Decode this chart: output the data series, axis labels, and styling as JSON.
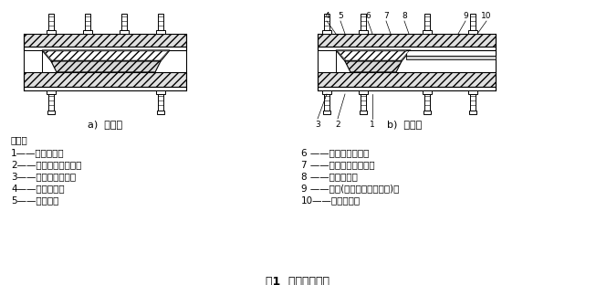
{
  "title": "图1  多向活动支座",
  "subtitle_a": "a)  纵桥向",
  "subtitle_b": "b)  横桥向",
  "legend_title": "说明：",
  "legend_left": [
    "1——下支座板；",
    "2——球面非金属滑板；",
    "3——球面不锈钢板；",
    "4——上支座板；",
    "5——密封环；"
  ],
  "legend_right": [
    "6 ——平面不锈钢板；",
    "7 ——平面非金属滑板；",
    "8 ——球冠衬板；",
    "9 ——锚栓(螺栓、套筒和螺杆)；",
    "10——防尘围板。"
  ],
  "bg_color": "#ffffff",
  "text_color": "#000000",
  "figsize": [
    6.53,
    3.12
  ],
  "dpi": 100
}
